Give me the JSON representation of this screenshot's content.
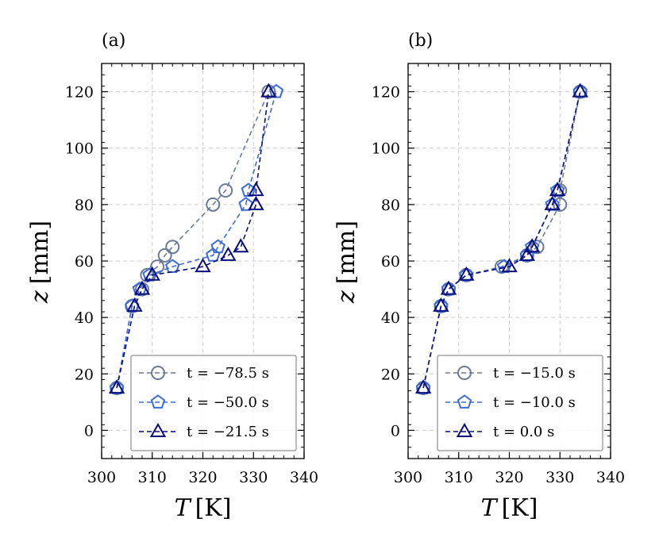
{
  "chart_data": [
    {
      "type": "line",
      "panel_label": "(a)",
      "xlabel_italic": "T",
      "xlabel_unit": "[K]",
      "ylabel_italic": "z",
      "ylabel_unit": "[mm]",
      "xlim": [
        300,
        340
      ],
      "ylim": [
        -10,
        130
      ],
      "xticks": [
        300,
        310,
        320,
        330,
        340
      ],
      "yticks": [
        0,
        20,
        40,
        60,
        80,
        100,
        120
      ],
      "grid": true,
      "legend_position": "lower-right",
      "series": [
        {
          "name": "t = −78.5 s",
          "marker": "circle",
          "color": "#6c7a96",
          "x": [
            303,
            306,
            308,
            309,
            311,
            312.5,
            314,
            322,
            324.5,
            333
          ],
          "y": [
            15,
            44,
            50,
            55,
            58,
            62,
            65,
            80,
            85,
            120
          ]
        },
        {
          "name": "t = −50.0 s",
          "marker": "pentagon",
          "color": "#3d6bd8",
          "x": [
            303,
            306,
            307.5,
            309.5,
            314,
            322,
            323,
            328.5,
            329,
            334.5
          ],
          "y": [
            15,
            44,
            50,
            55,
            58,
            62,
            65,
            80,
            85,
            120
          ]
        },
        {
          "name": "t = −21.5 s",
          "marker": "triangle",
          "color": "#0a0f7a",
          "x": [
            303,
            306.5,
            308,
            310,
            320,
            325,
            327.5,
            330.5,
            330.5,
            333
          ],
          "y": [
            15,
            44,
            50,
            55,
            58,
            62,
            65,
            80,
            85,
            120
          ]
        }
      ]
    },
    {
      "type": "line",
      "panel_label": "(b)",
      "xlabel_italic": "T",
      "xlabel_unit": "[K]",
      "ylabel_italic": "z",
      "ylabel_unit": "[mm]",
      "xlim": [
        300,
        340
      ],
      "ylim": [
        -10,
        130
      ],
      "xticks": [
        300,
        310,
        320,
        330,
        340
      ],
      "yticks": [
        0,
        20,
        40,
        60,
        80,
        100,
        120
      ],
      "grid": true,
      "legend_position": "lower-right",
      "series": [
        {
          "name": "t = −15.0 s",
          "marker": "circle",
          "color": "#6c7a96",
          "x": [
            303,
            306.5,
            308,
            311.5,
            318.5,
            323.5,
            325.5,
            330,
            330,
            334
          ],
          "y": [
            15,
            44,
            50,
            55,
            58,
            62,
            65,
            80,
            85,
            120
          ]
        },
        {
          "name": "t = −10.0 s",
          "marker": "pentagon",
          "color": "#3d6bd8",
          "x": [
            303,
            306.5,
            308,
            311.5,
            319,
            323.5,
            324.5,
            328.5,
            329.5,
            334
          ],
          "y": [
            15,
            44,
            50,
            55,
            58,
            62,
            65,
            80,
            85,
            120
          ]
        },
        {
          "name": "t = 0.0 s",
          "marker": "triangle",
          "color": "#0a0f7a",
          "x": [
            303,
            306.5,
            308,
            311.5,
            320,
            323.5,
            324.5,
            328.5,
            329.5,
            334
          ],
          "y": [
            15,
            44,
            50,
            55,
            58,
            62,
            65,
            80,
            85,
            120
          ]
        }
      ]
    }
  ]
}
